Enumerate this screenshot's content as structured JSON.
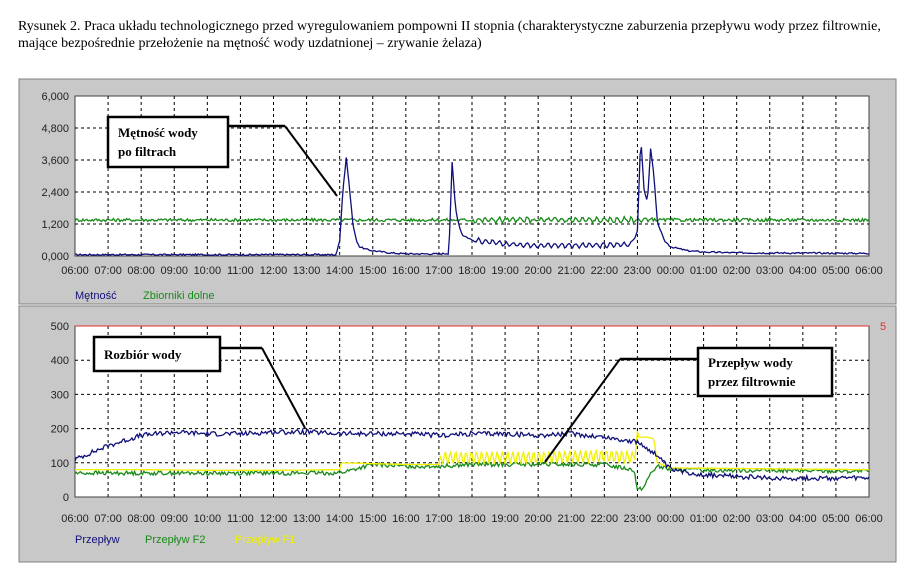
{
  "caption": "Rysunek 2. Praca układu technologicznego przed wyregulowaniem pompowni II stopnia (charakterystyczne zaburzenia przepływu wody przez filtrownie, mające bezpośrednie przełożenie na mętność wody uzdatnionej – zrywanie żelaza)",
  "colors": {
    "navy": "#10107a",
    "green": "#188a18",
    "yellow": "#f0f000",
    "red": "#e03030"
  },
  "chart_data": [
    {
      "type": "line",
      "title": "",
      "xlabel": "",
      "ylabel": "",
      "x_ticks": [
        "06:00",
        "07:00",
        "08:00",
        "09:00",
        "10:00",
        "11:00",
        "12:00",
        "13:00",
        "14:00",
        "15:00",
        "16:00",
        "17:00",
        "18:00",
        "19:00",
        "20:00",
        "21:00",
        "22:00",
        "23:00",
        "00:00",
        "01:00",
        "02:00",
        "03:00",
        "04:00",
        "05:00",
        "06:00"
      ],
      "y_ticks": [
        "0,000",
        "1,200",
        "2,400",
        "3,600",
        "4,800",
        "6,000"
      ],
      "ylim": [
        0,
        6
      ],
      "grid": true,
      "legend_position": "bottom-left",
      "series": [
        {
          "name": "Mętność",
          "color": "#10107a",
          "x": [
            0,
            7.9,
            8.0,
            8.1,
            8.2,
            8.3,
            8.4,
            8.5,
            8.6,
            8.8,
            9,
            9.5,
            10,
            11,
            11.3,
            11.4,
            11.5,
            11.6,
            11.7,
            12,
            13,
            14,
            15,
            16,
            16.8,
            17.0,
            17.1,
            17.2,
            17.3,
            17.4,
            17.5,
            17.6,
            17.8,
            18,
            18.5,
            19,
            20,
            24
          ],
          "y": [
            0.05,
            0.05,
            0.6,
            2.5,
            3.7,
            2.5,
            1.2,
            0.6,
            0.35,
            0.25,
            0.2,
            0.12,
            0.08,
            0.08,
            0.1,
            3.5,
            1.8,
            1.2,
            0.8,
            0.6,
            0.45,
            0.4,
            0.4,
            0.4,
            0.45,
            0.9,
            4.5,
            2.5,
            2.0,
            4.0,
            3.0,
            1.3,
            0.6,
            0.35,
            0.2,
            0.15,
            0.12,
            0.1
          ]
        },
        {
          "name": "Zbiorniki dolne",
          "color": "#188a18",
          "x": [
            0,
            24
          ],
          "y": [
            1.35,
            1.35
          ]
        }
      ]
    },
    {
      "type": "line",
      "title": "",
      "xlabel": "",
      "ylabel": "",
      "x_ticks": [
        "06:00",
        "07:00",
        "08:00",
        "09:00",
        "10:00",
        "11:00",
        "12:00",
        "13:00",
        "14:00",
        "15:00",
        "16:00",
        "17:00",
        "18:00",
        "19:00",
        "20:00",
        "21:00",
        "22:00",
        "23:00",
        "00:00",
        "01:00",
        "02:00",
        "03:00",
        "04:00",
        "05:00",
        "06:00"
      ],
      "y_ticks": [
        "0",
        "100",
        "200",
        "300",
        "400",
        "500"
      ],
      "ylim": [
        0,
        500
      ],
      "grid": true,
      "legend_position": "bottom-left",
      "reference_line": {
        "value": 500,
        "color": "#e03030"
      },
      "series": [
        {
          "name": "Przepływ",
          "color": "#10107a",
          "x": [
            0,
            1,
            2,
            3,
            4,
            5,
            6,
            7,
            8,
            9,
            10,
            11,
            12,
            13,
            14,
            15,
            16,
            17,
            17.5,
            18,
            19,
            20,
            21,
            22,
            23,
            24
          ],
          "y": [
            110,
            150,
            180,
            190,
            185,
            185,
            190,
            190,
            185,
            185,
            185,
            180,
            185,
            185,
            180,
            185,
            175,
            160,
            130,
            80,
            65,
            60,
            55,
            55,
            55,
            55
          ]
        },
        {
          "name": "Przepływ F2",
          "color": "#188a18",
          "x": [
            0,
            2,
            4,
            6,
            8,
            9,
            10,
            11,
            12,
            16,
            16.9,
            17.0,
            17.2,
            17.4,
            17.6,
            18,
            24
          ],
          "y": [
            70,
            70,
            70,
            70,
            70,
            95,
            90,
            90,
            95,
            95,
            80,
            20,
            30,
            70,
            90,
            80,
            75
          ]
        },
        {
          "name": "Przepływ F1",
          "color": "#f0f000",
          "x": [
            0,
            2,
            4,
            6,
            8,
            8.05,
            10,
            11,
            11.1,
            12,
            13,
            14,
            15,
            16,
            16.9,
            17.0,
            17.3,
            17.5,
            17.6,
            18,
            24
          ],
          "y": [
            80,
            80,
            78,
            78,
            80,
            100,
            95,
            95,
            115,
            115,
            115,
            115,
            118,
            120,
            115,
            175,
            175,
            170,
            100,
            85,
            80
          ]
        }
      ]
    }
  ],
  "callouts": {
    "turbidity": {
      "line1": "Mętność wody",
      "line2": "po filtrach"
    },
    "demand": {
      "line1": "Rozbiór wody"
    },
    "filter_flow": {
      "line1": "Przepływ wody",
      "line2": "przez filtrownie"
    }
  },
  "red_marker": "5"
}
